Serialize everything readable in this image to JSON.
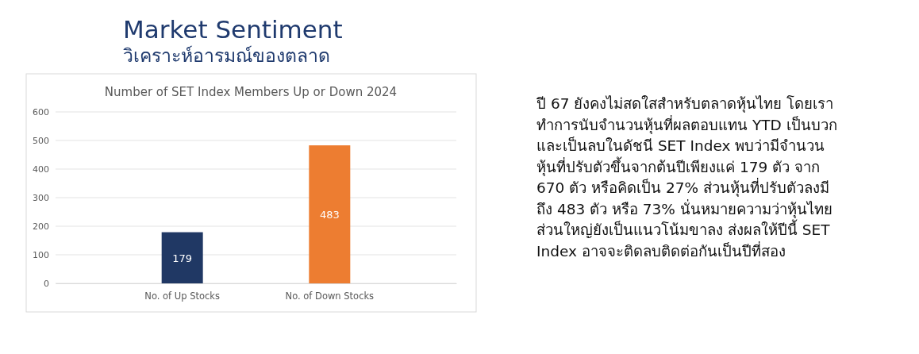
{
  "chart_data": {
    "type": "bar",
    "title": "Number of SET Index Members Up or Down 2024",
    "categories": [
      "No. of Up Stocks",
      "No. of Down Stocks"
    ],
    "values": [
      179,
      483
    ],
    "colors": [
      "#203864",
      "#ed7d31"
    ],
    "ylim": [
      0,
      600
    ],
    "yticks": [
      0,
      100,
      200,
      300,
      400,
      500,
      600
    ],
    "grid": "y",
    "data_labels": true,
    "annotations": [
      "Market Sentiment",
      "วิเคราะห์อารมณ์ของตลาด",
      "ปี 67 ยังคงไม่สดใสสำหรับตลาดหุ้นไทย โดยเรา",
      "ทำการนับจำนวนหุ้นที่ผลตอบแทน YTD เป็นบวก",
      "และเป็นลบในดัชนี SET Index พบว่ามีจำนวน",
      "หุ้นที่ปรับตัวขึ้นจากต้นปีเพียงแค่ 179 ตัว จาก",
      "670 ตัว หรือคิดเป็น 27% ส่วนหุ้นที่ปรับตัวลงมี",
      "ถึง 483 ตัว หรือ 73% นั่นหมายความว่าหุ้นไทย",
      "ส่วนใหญ่ยังเป็นแนวโน้มขาลง ส่งผลให้ปีนี้ SET",
      "Index อาจจะติดลบติดต่อกันเป็นปีที่สอง"
    ]
  }
}
